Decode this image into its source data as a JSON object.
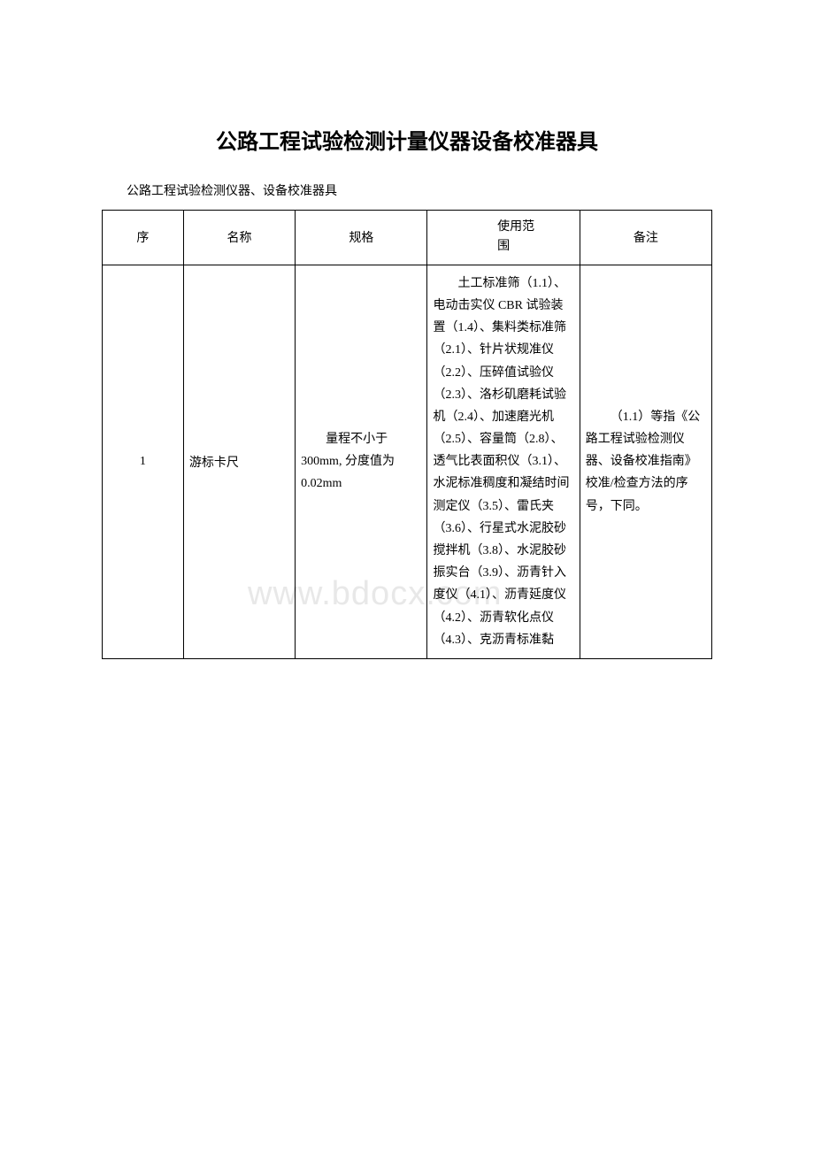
{
  "title": "公路工程试验检测计量仪器设备校准器具",
  "subtitle": "公路工程试验检测仪器、设备校准器具",
  "watermark_text": "www.bdocx.com",
  "table": {
    "columns": [
      "序",
      "名称",
      "规格",
      "使用范围",
      "备注"
    ],
    "header_scope_prefix": "使用范",
    "header_scope_suffix": "围",
    "rows": [
      {
        "seq": "1",
        "name": "游标卡尺",
        "spec": "量程不小于 300mm, 分度值为0.02mm",
        "scope": "土工标准筛（1.1）、电动击实仪 CBR 试验装置（1.4）、集料类标准筛（2.1）、针片状规准仪（2.2）、压碎值试验仪（2.3）、洛杉矶磨耗试验机（2.4）、加速磨光机（2.5）、容量筒（2.8）、透气比表面积仪（3.1）、水泥标准稠度和凝结时间测定仪（3.5）、雷氏夹（3.6）、行星式水泥胶砂搅拌机（3.8）、水泥胶砂振实台（3.9）、沥青针入度仪（4.1）、沥青延度仪（4.2）、沥青软化点仪（4.3）、克沥青标准黏",
        "note": "（1.1）等指《公路工程试验检测仪器、设备校准指南》校准/检查方法的序号，下同。"
      }
    ]
  }
}
